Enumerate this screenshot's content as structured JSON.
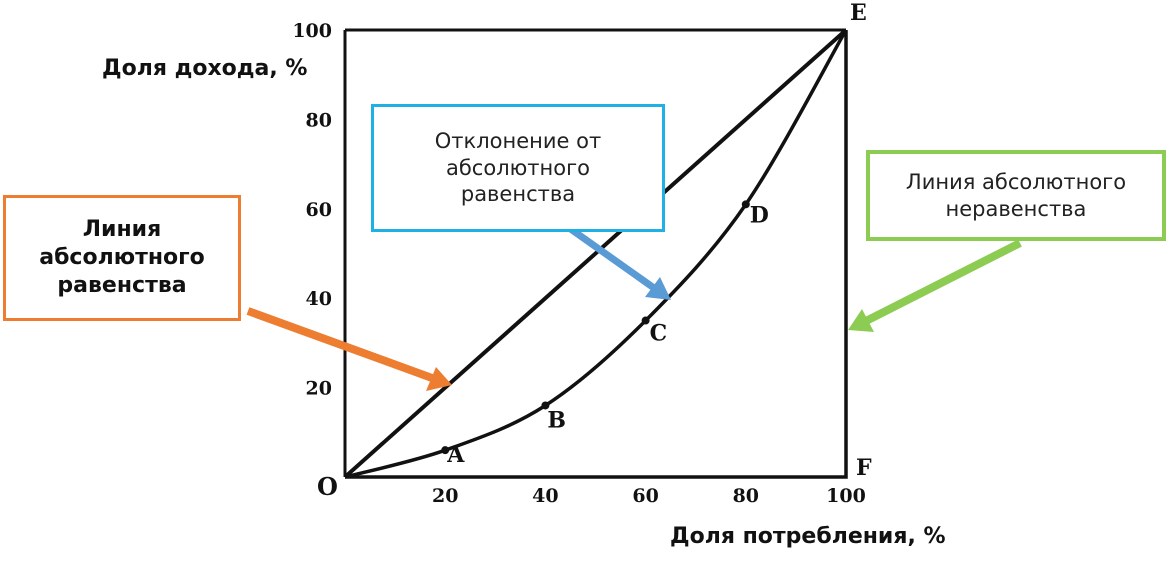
{
  "chart_data": {
    "type": "line",
    "xlabel": "Доля потребления,  %",
    "ylabel": "Доля дохода, %",
    "xlim": [
      0,
      100
    ],
    "ylim": [
      0,
      100
    ],
    "x_ticks": [
      "20",
      "40",
      "60",
      "80",
      "100"
    ],
    "y_ticks": [
      "20",
      "40",
      "60",
      "80",
      "100"
    ],
    "origin_label": "O",
    "grid": false,
    "series": [
      {
        "name": "Линия абсолютного равенства",
        "x": [
          0,
          100
        ],
        "y": [
          0,
          100
        ]
      },
      {
        "x": [
          0,
          20,
          40,
          60,
          80,
          100
        ],
        "y": [
          0,
          6,
          16,
          35,
          61,
          100
        ]
      },
      {
        "name": "Линия абсолютного неравенства",
        "x": [
          0,
          100,
          100
        ],
        "y": [
          0,
          0,
          100
        ]
      }
    ],
    "points": [
      {
        "label": "A",
        "x": 20,
        "y": 6
      },
      {
        "label": "B",
        "x": 40,
        "y": 16
      },
      {
        "label": "C",
        "x": 60,
        "y": 35
      },
      {
        "label": "D",
        "x": 80,
        "y": 61
      },
      {
        "label": "E",
        "x": 100,
        "y": 100
      },
      {
        "label": "F",
        "x": 100,
        "y": 0
      }
    ]
  },
  "callouts": {
    "equality_line": [
      "Линия",
      "абсолютного",
      "равенства"
    ],
    "deviation": [
      "Отклонение от",
      "абсолютного",
      "равенства"
    ],
    "inequality_line": [
      "Линия абсолютного",
      "неравенства"
    ]
  },
  "colors": {
    "equality_arrow": "#ED7D31",
    "deviation_arrow": "#5B9BD5",
    "inequality_arrow": "#8CCC52",
    "curve": "#111111"
  }
}
